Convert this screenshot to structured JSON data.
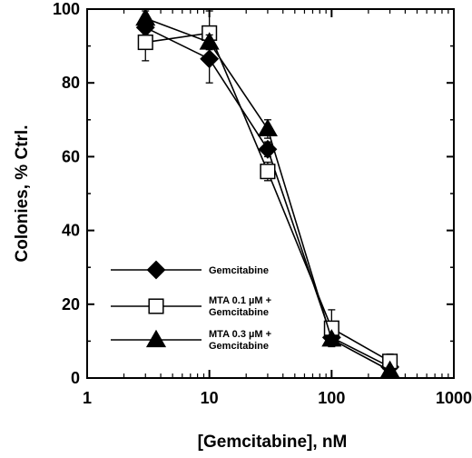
{
  "chart_data": {
    "type": "line",
    "xlabel": "[Gemcitabine], nM",
    "ylabel": "Colonies, % Ctrl.",
    "xscale": "log",
    "xlim": [
      1,
      1000
    ],
    "ylim": [
      0,
      100
    ],
    "xticks": [
      1,
      10,
      100,
      1000
    ],
    "xtick_labels": [
      "1",
      "10",
      "100",
      "1000"
    ],
    "yticks": [
      0,
      20,
      40,
      60,
      80,
      100
    ],
    "ytick_labels": [
      "0",
      "20",
      "40",
      "60",
      "80",
      "100"
    ],
    "grid": false,
    "legend_position": "lower-left",
    "x": [
      3,
      10,
      30,
      100,
      300
    ],
    "series": [
      {
        "name": "Gemcitabine",
        "lines": [
          "Gemcitabine"
        ],
        "marker": "diamond",
        "fill": "filled",
        "values": [
          95,
          86.5,
          62,
          11,
          3
        ],
        "errors": [
          2,
          6.5,
          2,
          1,
          1
        ]
      },
      {
        "name": "MTA 0.1 µM + Gemcitabine",
        "lines": [
          "MTA 0.1 µM +",
          "Gemcitabine"
        ],
        "marker": "square",
        "fill": "open",
        "values": [
          91,
          93.5,
          56,
          13.5,
          4.5
        ],
        "errors": [
          5,
          6,
          2.5,
          5,
          2
        ]
      },
      {
        "name": "MTA 0.3 µM + Gemcitabine",
        "lines": [
          "MTA 0.3 µM +",
          "Gemcitabine"
        ],
        "marker": "triangle",
        "fill": "filled",
        "values": [
          97.5,
          91,
          67.5,
          10.5,
          2
        ],
        "errors": [
          2,
          2,
          2.5,
          1,
          1
        ]
      }
    ]
  }
}
